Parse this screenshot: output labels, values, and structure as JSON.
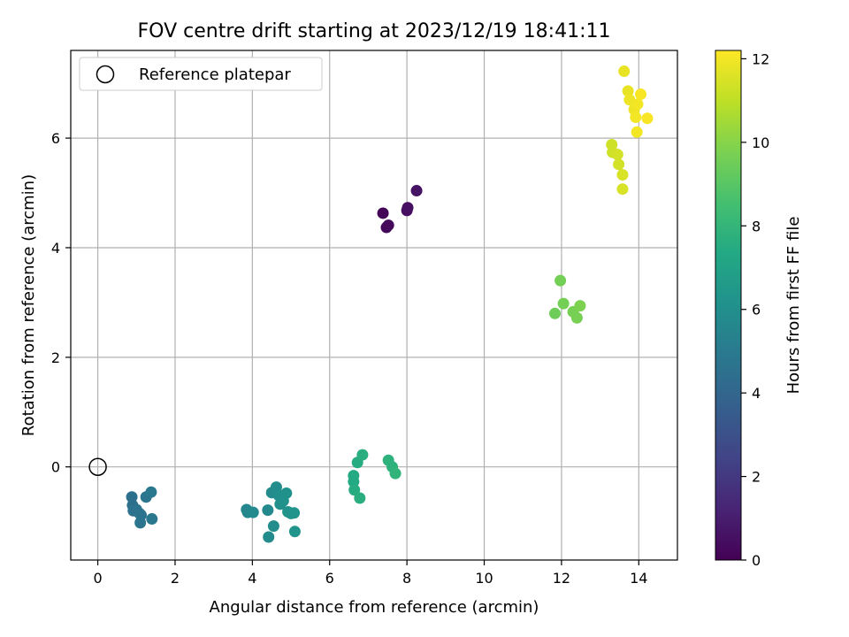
{
  "chart_data": {
    "type": "scatter",
    "title": "FOV centre drift starting at 2023/12/19 18:41:11",
    "xlabel": "Angular distance from reference (arcmin)",
    "ylabel": "Rotation from reference (arcmin)",
    "xlim": [
      -0.7,
      15.0
    ],
    "ylim": [
      -1.7,
      7.6
    ],
    "xticks": [
      0,
      2,
      4,
      6,
      8,
      10,
      12,
      14
    ],
    "yticks": [
      0,
      2,
      4,
      6
    ],
    "grid": true,
    "legend": {
      "placement": "top-left",
      "entries": [
        "Reference platepar"
      ]
    },
    "reference_point": {
      "x": 0,
      "y": 0
    },
    "colorbar": {
      "label": "Hours from first FF file",
      "colormap": "viridis",
      "range": [
        0,
        12.2
      ],
      "ticks": [
        0,
        2,
        4,
        6,
        8,
        10,
        12
      ]
    },
    "points": [
      {
        "x": 7.38,
        "y": 4.63,
        "c": 0.1
      },
      {
        "x": 7.47,
        "y": 4.37,
        "c": 0.2
      },
      {
        "x": 7.52,
        "y": 4.41,
        "c": 0.3
      },
      {
        "x": 8.0,
        "y": 4.68,
        "c": 0.4
      },
      {
        "x": 8.02,
        "y": 4.73,
        "c": 0.5
      },
      {
        "x": 8.25,
        "y": 5.04,
        "c": 0.6
      },
      {
        "x": 0.88,
        "y": -0.55,
        "c": 4.5
      },
      {
        "x": 0.9,
        "y": -0.7,
        "c": 4.5
      },
      {
        "x": 0.92,
        "y": -0.8,
        "c": 4.6
      },
      {
        "x": 1.0,
        "y": -0.78,
        "c": 4.6
      },
      {
        "x": 1.08,
        "y": -0.85,
        "c": 4.7
      },
      {
        "x": 1.12,
        "y": -0.88,
        "c": 4.7
      },
      {
        "x": 1.1,
        "y": -1.02,
        "c": 4.8
      },
      {
        "x": 1.25,
        "y": -0.55,
        "c": 4.8
      },
      {
        "x": 1.38,
        "y": -0.46,
        "c": 4.9
      },
      {
        "x": 1.4,
        "y": -0.95,
        "c": 4.9
      },
      {
        "x": 3.85,
        "y": -0.78,
        "c": 5.6
      },
      {
        "x": 3.88,
        "y": -0.83,
        "c": 5.6
      },
      {
        "x": 4.02,
        "y": -0.83,
        "c": 5.7
      },
      {
        "x": 4.4,
        "y": -0.79,
        "c": 5.7
      },
      {
        "x": 4.42,
        "y": -1.28,
        "c": 5.8
      },
      {
        "x": 4.5,
        "y": -0.47,
        "c": 5.8
      },
      {
        "x": 4.55,
        "y": -1.08,
        "c": 5.9
      },
      {
        "x": 4.62,
        "y": -0.37,
        "c": 5.9
      },
      {
        "x": 4.68,
        "y": -0.52,
        "c": 6.0
      },
      {
        "x": 4.72,
        "y": -0.68,
        "c": 6.0
      },
      {
        "x": 4.8,
        "y": -0.62,
        "c": 6.1
      },
      {
        "x": 4.88,
        "y": -0.48,
        "c": 6.1
      },
      {
        "x": 4.92,
        "y": -0.82,
        "c": 6.2
      },
      {
        "x": 5.0,
        "y": -0.85,
        "c": 6.2
      },
      {
        "x": 5.08,
        "y": -0.84,
        "c": 6.3
      },
      {
        "x": 5.1,
        "y": -1.18,
        "c": 6.3
      },
      {
        "x": 6.62,
        "y": -0.16,
        "c": 7.4
      },
      {
        "x": 6.62,
        "y": -0.27,
        "c": 7.4
      },
      {
        "x": 6.64,
        "y": -0.42,
        "c": 7.5
      },
      {
        "x": 6.72,
        "y": 0.08,
        "c": 7.5
      },
      {
        "x": 6.78,
        "y": -0.57,
        "c": 7.6
      },
      {
        "x": 6.85,
        "y": 0.22,
        "c": 7.6
      },
      {
        "x": 7.52,
        "y": 0.12,
        "c": 7.8
      },
      {
        "x": 7.62,
        "y": 0.0,
        "c": 7.8
      },
      {
        "x": 7.7,
        "y": -0.12,
        "c": 7.9
      },
      {
        "x": 11.83,
        "y": 2.8,
        "c": 9.5
      },
      {
        "x": 11.97,
        "y": 3.4,
        "c": 9.6
      },
      {
        "x": 12.05,
        "y": 2.98,
        "c": 9.6
      },
      {
        "x": 12.3,
        "y": 2.83,
        "c": 9.7
      },
      {
        "x": 12.4,
        "y": 2.72,
        "c": 9.7
      },
      {
        "x": 12.48,
        "y": 2.94,
        "c": 9.8
      },
      {
        "x": 13.3,
        "y": 5.88,
        "c": 11.3
      },
      {
        "x": 13.32,
        "y": 5.74,
        "c": 11.3
      },
      {
        "x": 13.45,
        "y": 5.7,
        "c": 11.4
      },
      {
        "x": 13.48,
        "y": 5.52,
        "c": 11.4
      },
      {
        "x": 13.58,
        "y": 5.33,
        "c": 11.5
      },
      {
        "x": 13.58,
        "y": 5.07,
        "c": 11.5
      },
      {
        "x": 13.62,
        "y": 7.22,
        "c": 11.8
      },
      {
        "x": 13.72,
        "y": 6.86,
        "c": 11.8
      },
      {
        "x": 13.76,
        "y": 6.7,
        "c": 11.9
      },
      {
        "x": 13.88,
        "y": 6.52,
        "c": 11.9
      },
      {
        "x": 13.92,
        "y": 6.38,
        "c": 12.0
      },
      {
        "x": 13.95,
        "y": 6.11,
        "c": 12.0
      },
      {
        "x": 13.97,
        "y": 6.62,
        "c": 12.0
      },
      {
        "x": 14.05,
        "y": 6.8,
        "c": 12.1
      },
      {
        "x": 14.22,
        "y": 6.36,
        "c": 12.1
      }
    ]
  }
}
